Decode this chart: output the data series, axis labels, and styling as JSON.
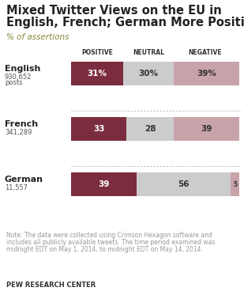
{
  "title_line1": "Mixed Twitter Views on the EU in",
  "title_line2": "English, French; German More Positive",
  "subtitle": "% of assertions",
  "languages": [
    "English",
    "French",
    "German"
  ],
  "posts_line1": [
    "930,652",
    "341,289",
    "11,557"
  ],
  "posts_line2": [
    "posts",
    "",
    ""
  ],
  "positive": [
    31,
    33,
    39
  ],
  "neutral": [
    30,
    28,
    56
  ],
  "negative": [
    39,
    39,
    5
  ],
  "col_headers": [
    "POSITIVE",
    "NEUTRAL",
    "NEGATIVE"
  ],
  "color_positive": "#7B2D3F",
  "color_neutral": "#CCCCCC",
  "color_negative": "#C9A3AA",
  "title_color": "#222222",
  "subtitle_color": "#888840",
  "note_color": "#999999",
  "note_line1": "Note: The data were collected using Crimson Hexagon software and",
  "note_line2": "includes all publicly available tweets. The time period examined was",
  "note_line3": "midnight EDT on May 1, 2014, to midnight EDT on May 14, 2014.",
  "footer_text": "PEW RESEARCH CENTER",
  "bg_color": "#FFFFFF"
}
